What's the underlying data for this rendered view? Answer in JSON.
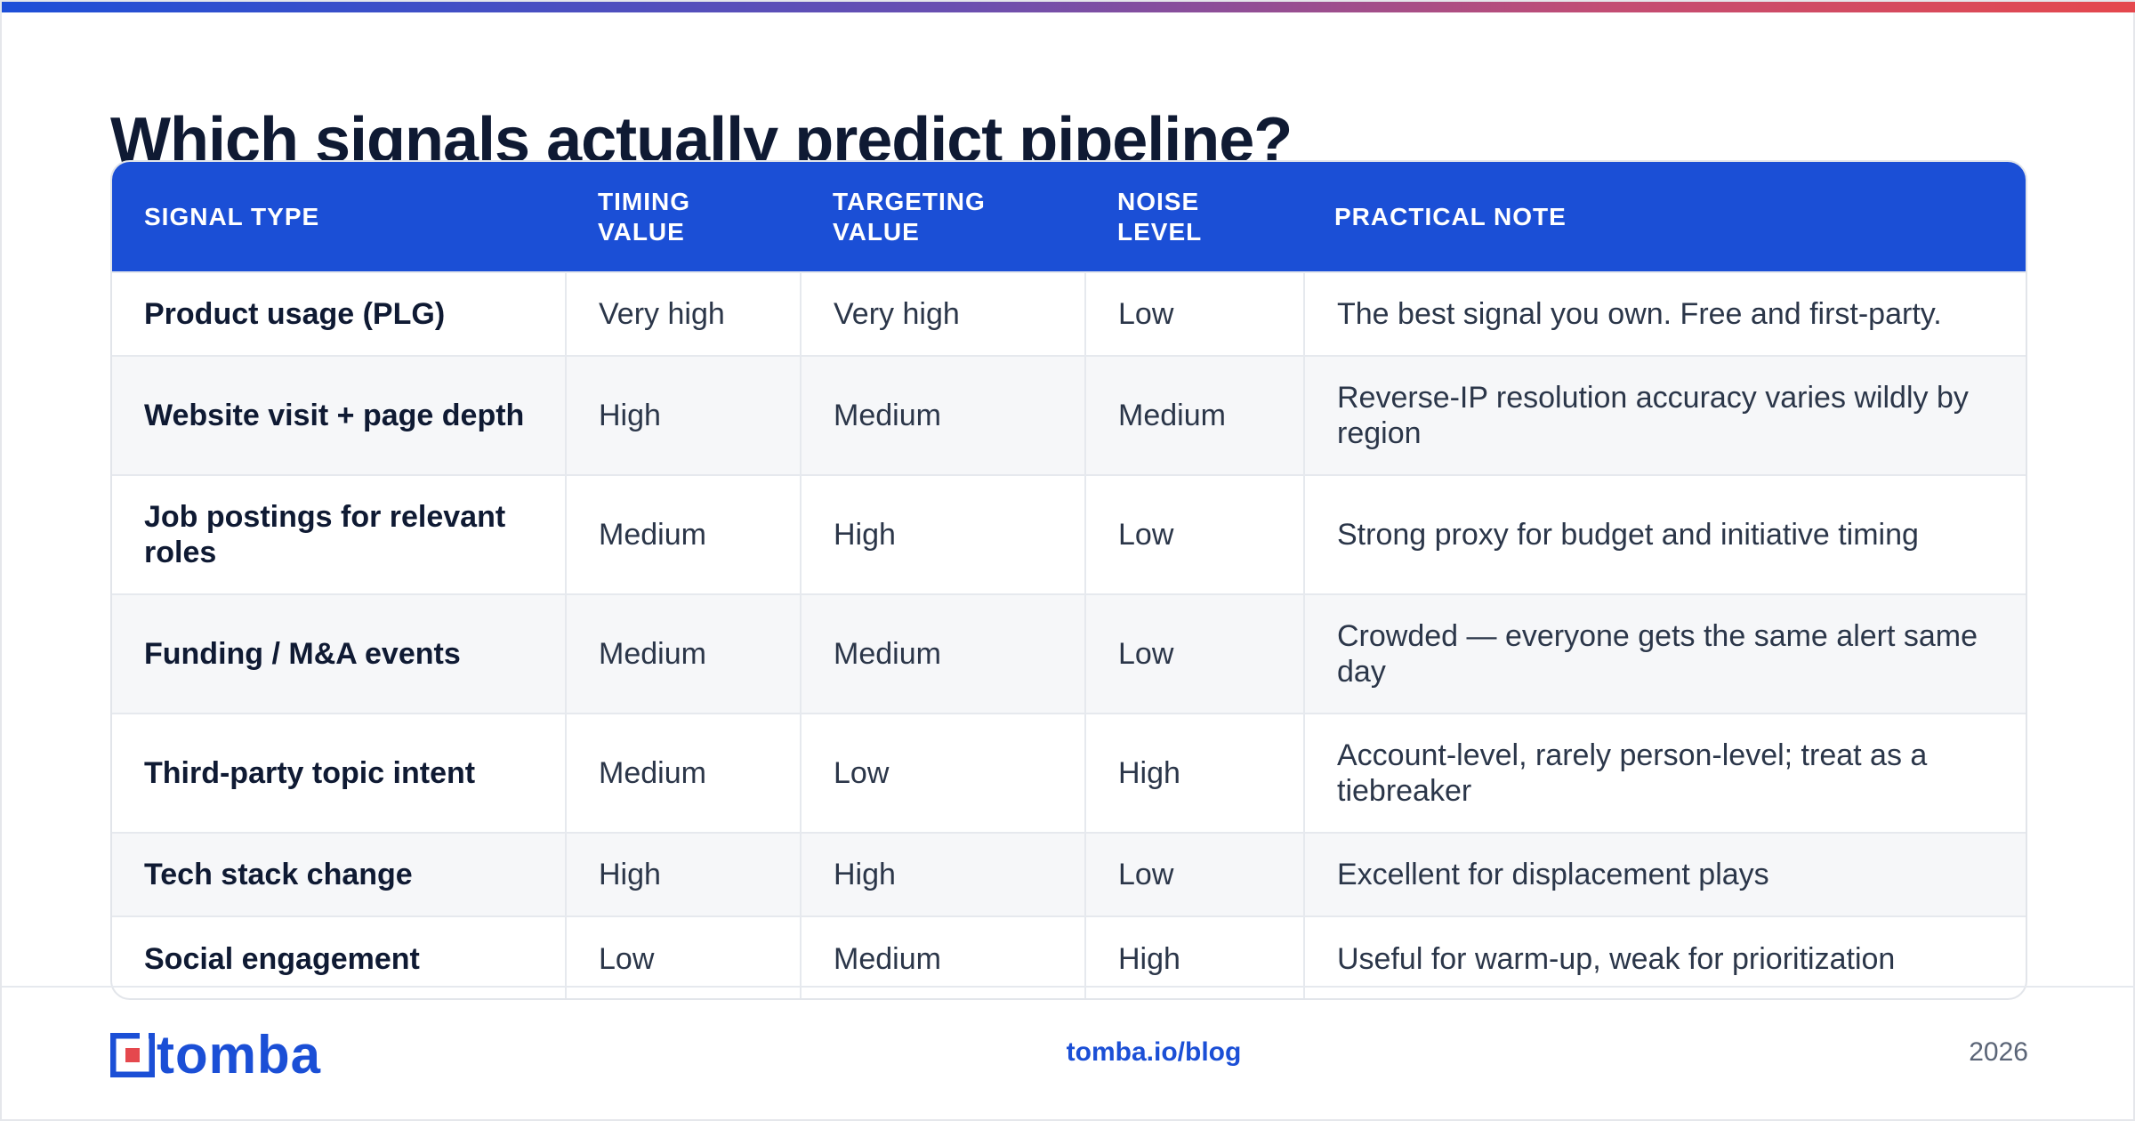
{
  "title": "Which signals actually predict pipeline?",
  "table": {
    "headers": {
      "signal_type": "SIGNAL TYPE",
      "timing_1": "TIMING",
      "timing_2": "VALUE",
      "targeting_1": "TARGETING",
      "targeting_2": "VALUE",
      "noise_1": "NOISE",
      "noise_2": "LEVEL",
      "note": "PRACTICAL NOTE"
    },
    "rows": [
      {
        "signal": "Product usage (PLG)",
        "timing": "Very high",
        "targeting": "Very high",
        "noise": "Low",
        "note": "The best signal you own. Free and first-party."
      },
      {
        "signal": "Website visit + page depth",
        "timing": "High",
        "targeting": "Medium",
        "noise": "Medium",
        "note": "Reverse-IP resolution accuracy varies wildly by region"
      },
      {
        "signal": "Job postings for relevant roles",
        "timing": "Medium",
        "targeting": "High",
        "noise": "Low",
        "note": "Strong proxy for budget and initiative timing"
      },
      {
        "signal": "Funding / M&A events",
        "timing": "Medium",
        "targeting": "Medium",
        "noise": "Low",
        "note": "Crowded — everyone gets the same alert same day"
      },
      {
        "signal": "Third-party topic intent",
        "timing": "Medium",
        "targeting": "Low",
        "noise": "High",
        "note": "Account-level, rarely person-level; treat as a tiebreaker"
      },
      {
        "signal": "Tech stack change",
        "timing": "High",
        "targeting": "High",
        "noise": "Low",
        "note": "Excellent for displacement plays"
      },
      {
        "signal": "Social engagement",
        "timing": "Low",
        "targeting": "Medium",
        "noise": "High",
        "note": "Useful for warm-up, weak for prioritization"
      }
    ]
  },
  "footer": {
    "logo_text": "tomba",
    "link": "tomba.io/blog",
    "year": "2026"
  },
  "colors": {
    "accent": "#1b4fd6",
    "logo_red": "#e5484d",
    "text_dark": "#0f1a33"
  }
}
